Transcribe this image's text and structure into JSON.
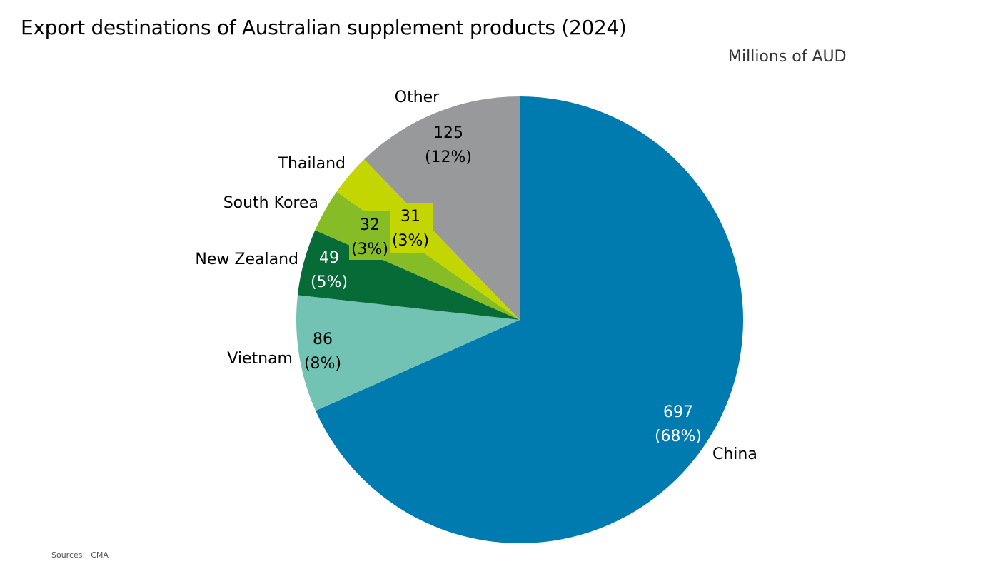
{
  "title": "Export destinations of Australian supplement products (2024)",
  "units_label": "Millions of AUD",
  "source": {
    "label": "Sources:",
    "value": "CMA"
  },
  "chart_data": {
    "type": "pie",
    "title": "Export destinations of Australian supplement products (2024)",
    "subtitle": "Millions of AUD",
    "start_angle_deg": 0,
    "direction": "clockwise",
    "legend": "none",
    "slices": [
      {
        "label": "China",
        "value": 697,
        "percent_label": "(68%)",
        "color": "#007BB0",
        "text_color": "#FFFFFF"
      },
      {
        "label": "Vietnam",
        "value": 86,
        "percent_label": "(8%)",
        "color": "#72C3B4",
        "text_color": "#000000"
      },
      {
        "label": "New Zealand",
        "value": 49,
        "percent_label": "(5%)",
        "color": "#066B37",
        "text_color": "#FFFFFF"
      },
      {
        "label": "South Korea",
        "value": 32,
        "percent_label": "(3%)",
        "color": "#86BC25",
        "text_color": "#000000"
      },
      {
        "label": "Thailand",
        "value": 31,
        "percent_label": "(3%)",
        "color": "#C4D600",
        "text_color": "#000000"
      },
      {
        "label": "Other",
        "value": 125,
        "percent_label": "(12%)",
        "color": "#97999B",
        "text_color": "#000000"
      }
    ]
  }
}
